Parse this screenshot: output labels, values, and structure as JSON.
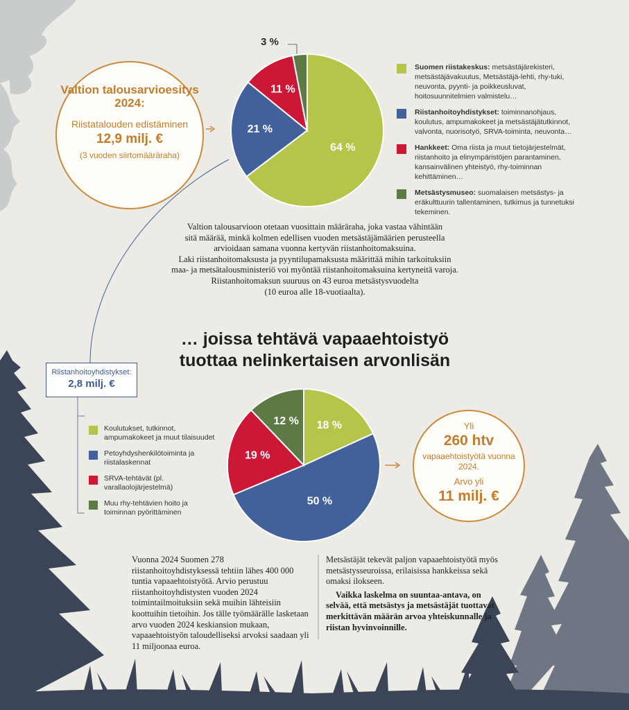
{
  "budget": {
    "title": "Valtion talousarvioesitys 2024:",
    "line1": "Riistatalouden edistäminen",
    "amount": "12,9 milj. €",
    "note": "(3 vuoden siirtomääräraha)"
  },
  "funding_chart": {
    "chart_data": {
      "type": "pie",
      "values": [
        64,
        21,
        11,
        3
      ],
      "labels": [
        "64 %",
        "21 %",
        "11 %",
        "3 %"
      ],
      "colors": [
        "#b4c54a",
        "#42609a",
        "#cc1736",
        "#5d7a45"
      ]
    },
    "legend": [
      {
        "name": "Suomen riistakeskus:",
        "text": "metsästäjärekisteri, metsästäjävakuutus, Metsästäjä-lehti, rhy-tuki, neuvonta, pyynti- ja poikkeusluvat, hoitosuunnitelmien valmistelu…",
        "color": "#b4c54a"
      },
      {
        "name": "Riistanhoitoyhdistykset:",
        "text": "toiminnanohjaus, koulutus, ampumakokeet ja metsästäjätutkinnot, valvonta, nuorisotyö, SRVA-toiminta, neuvonta…",
        "color": "#42609a"
      },
      {
        "name": "Hankkeet:",
        "text": "Oma riista ja muut tietojärjestelmät, riistanhoito ja elinympäristöjen parantaminen, kansainvälinen yhteistyö, rhy-toiminnan kehittäminen…",
        "color": "#cc1736"
      },
      {
        "name": "Metsästysmuseo:",
        "text": "suomalaisen metsästys- ja eräkulttuurin tallentaminen, tutkimus ja tunnetuksi tekeminen.",
        "color": "#5d7a45"
      }
    ]
  },
  "paragraph1": [
    "Valtion talousarvioon otetaan vuosittain määräraha, joka vastaa vähintään",
    "sitä määrää, minkä kolmen edellisen vuoden metsästäjämäärien perusteella",
    "arvioidaan samana vuonna kertyvän riistanhoitomaksuina.",
    "Laki riistanhoitomaksusta ja pyyntilupamaksusta määrittää mihin tarkoituksiin",
    "maa- ja metsätalousministeriö voi myöntää riistanhoitomaksuina kertyneitä varoja.",
    "Riistanhoitomaksun suuruus on 43 euroa metsästysvuodelta",
    "(10 euroa alle 18-vuotiaalta)."
  ],
  "headline": {
    "line1": "… joissa tehtävä vapaaehtoistyö",
    "line2": "tuottaa nelinkertaisen arvonlisän"
  },
  "rhy_box": {
    "label": "Riistanhoitoyhdistykset:",
    "amount": "2,8 milj. €"
  },
  "volunteer_chart": {
    "chart_data": {
      "type": "pie",
      "values": [
        18,
        50,
        19,
        12
      ],
      "labels": [
        "18 %",
        "50 %",
        "19 %",
        "12 %"
      ],
      "colors": [
        "#b4c54a",
        "#42609a",
        "#cc1736",
        "#5d7a45"
      ]
    },
    "legend": [
      {
        "text": "Koulutukset, tutkinnot, ampumakokeet ja muut tilaisuudet",
        "color": "#b4c54a"
      },
      {
        "text": "Petoyhdyshenkilötoiminta ja riistalaskennat",
        "color": "#42609a"
      },
      {
        "text": "SRVA-tehtävät (pl. varallaolojärjestelmä)",
        "color": "#cc1736"
      },
      {
        "text": "Muu rhy-tehtävien hoito ja toiminnan pyörittäminen",
        "color": "#5d7a45"
      }
    ]
  },
  "volunteer_circle": {
    "prefix": "Yli",
    "htv": "260 htv",
    "desc": "vapaaehtoistyötä vuonna 2024.",
    "value_prefix": "Arvo yli",
    "value": "11 milj. €"
  },
  "bottom": {
    "col1": "Vuonna 2024 Suomen 278 riistanhoitoyhdistyksessä tehtiin lähes 400 000 tuntia vapaaehtoistyötä. Arvio perustuu riistanhoitoyhdistysten vuoden 2024 toimintailmoituksiin sekä muihin lähteisiin koottuihin tietoihin. Jos tälle työmäärälle lasketaan arvo vuoden 2024 keskiansion mukaan, vapaaehtoistyön taloudelliseksi arvoksi saadaan yli 11 miljoonaa euroa.",
    "col2": "Metsästäjät tekevät paljon vapaaehtoistyötä myös metsästysseuroissa, erilaisissa hankkeissa sekä omaksi ilokseen.",
    "col2_bold": "Vaikka laskelma on suuntaa-antava, on selvää, että metsästys ja metsästäjät tuottavat merkittävän määrän arvoa yhteiskunnalle ja riistan hyvinvoinnille."
  }
}
